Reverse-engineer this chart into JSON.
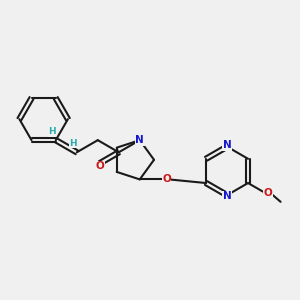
{
  "bg": "#f0f0f0",
  "bc": "#1a1a1a",
  "Nc": "#1515cc",
  "Oc": "#cc1515",
  "Hc": "#2aabab",
  "lw": 1.5,
  "dbo": 0.008,
  "fs": 7.5,
  "fsH": 6.5,
  "xlim": [
    -0.05,
    1.05
  ],
  "ylim": [
    -0.05,
    1.05
  ]
}
